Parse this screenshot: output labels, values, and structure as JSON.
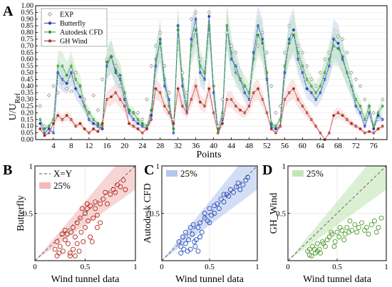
{
  "chart_data": [
    {
      "panel": "A",
      "type": "line",
      "xlabel": "Points",
      "ylabel": "U/URef",
      "ylabel_main": "U/U",
      "ylabel_sub": "Ref",
      "xlim": [
        1,
        78
      ],
      "ylim": [
        0,
        1
      ],
      "xticks": [
        4,
        8,
        12,
        16,
        20,
        24,
        28,
        32,
        36,
        40,
        44,
        48,
        52,
        56,
        60,
        64,
        68,
        72,
        76
      ],
      "yticks": [
        "0.00",
        "0.05",
        "0.10",
        "0.15",
        "0.20",
        "0.25",
        "0.30",
        "0.35",
        "0.40",
        "0.45",
        "0.50",
        "0.55",
        "0.60",
        "0.65",
        "0.70",
        "0.75",
        "0.80",
        "0.85",
        "0.90",
        "0.95",
        "1.00"
      ],
      "legend": [
        "EXP",
        "Butterfly",
        "Autodesk CFD",
        "GH Wind"
      ],
      "colors": {
        "exp": "#888888",
        "butterfly": "#1f3fbf",
        "autodesk": "#2e9a2e",
        "ghwind": "#b02a1a",
        "band_butterfly": "#b8c8ec",
        "band_autodesk": "#b9e3b9",
        "band_ghwind": "#f4c4c4"
      },
      "series": [
        {
          "name": "EXP",
          "marker": "open-diamond",
          "values": [
            0.25,
            0.1,
            0.33,
            0.4,
            0.35,
            0.42,
            0.38,
            0.36,
            0.5,
            0.4,
            0.3,
            0.2,
            0.33,
            0.22,
            0.45,
            0.6,
            0.62,
            0.55,
            0.4,
            0.3,
            0.22,
            0.2,
            0.2,
            0.15,
            0.3,
            0.55,
            0.7,
            0.8,
            0.55,
            0.35,
            0.15,
            0.85,
            0.5,
            0.35,
            0.9,
            0.95,
            0.6,
            0.5,
            0.95,
            0.4,
            0.1,
            0.3,
            0.8,
            0.7,
            0.65,
            0.45,
            0.4,
            0.35,
            0.65,
            0.7,
            0.8,
            0.65,
            0.4,
            0.2,
            0.25,
            0.65,
            0.85,
            0.8,
            0.7,
            0.65,
            0.55,
            0.45,
            0.4,
            0.5,
            0.6,
            0.65,
            0.75,
            0.77,
            0.75,
            0.65,
            0.5,
            0.45,
            0.4,
            0.3,
            0.25,
            0.2,
            0.15,
            0.3
          ]
        },
        {
          "name": "Butterfly",
          "marker": "filled-circle",
          "values": [
            0.12,
            0.05,
            0.08,
            0.05,
            0.5,
            0.45,
            0.42,
            0.5,
            0.38,
            0.32,
            0.25,
            0.15,
            0.12,
            0.1,
            0.08,
            0.55,
            0.62,
            0.5,
            0.45,
            0.3,
            0.2,
            0.15,
            0.12,
            0.1,
            0.08,
            0.18,
            0.55,
            0.75,
            0.4,
            0.3,
            0.05,
            0.85,
            0.4,
            0.2,
            0.75,
            0.9,
            0.5,
            0.45,
            0.92,
            0.35,
            0.05,
            0.15,
            0.85,
            0.6,
            0.55,
            0.45,
            0.35,
            0.3,
            0.65,
            0.85,
            0.75,
            0.45,
            0.1,
            0.08,
            0.1,
            0.5,
            0.75,
            0.82,
            0.6,
            0.5,
            0.38,
            0.35,
            0.3,
            0.35,
            0.45,
            0.55,
            0.75,
            0.72,
            0.6,
            0.5,
            0.4,
            0.25,
            0.2,
            0.1,
            0.2,
            0.08,
            0.18,
            0.15
          ]
        },
        {
          "name": "Autodesk CFD",
          "marker": "filled-circle",
          "values": [
            0.15,
            0.08,
            0.1,
            0.15,
            0.55,
            0.55,
            0.48,
            0.55,
            0.45,
            0.4,
            0.25,
            0.2,
            0.15,
            0.12,
            0.1,
            0.58,
            0.62,
            0.52,
            0.48,
            0.35,
            0.22,
            0.2,
            0.15,
            0.12,
            0.1,
            0.22,
            0.6,
            0.72,
            0.45,
            0.25,
            0.08,
            0.82,
            0.45,
            0.25,
            0.7,
            0.82,
            0.55,
            0.5,
            0.85,
            0.4,
            0.08,
            0.2,
            0.85,
            0.65,
            0.5,
            0.45,
            0.4,
            0.35,
            0.6,
            0.78,
            0.72,
            0.5,
            0.12,
            0.1,
            0.15,
            0.55,
            0.72,
            0.78,
            0.65,
            0.55,
            0.45,
            0.4,
            0.35,
            0.4,
            0.5,
            0.6,
            0.7,
            0.68,
            0.62,
            0.5,
            0.4,
            0.3,
            0.25,
            0.15,
            0.25,
            0.1,
            0.2,
            0.25
          ]
        },
        {
          "name": "GH Wind",
          "marker": "filled-circle",
          "values": [
            0.08,
            0.03,
            0.05,
            0.12,
            0.18,
            0.15,
            0.18,
            0.15,
            0.1,
            0.12,
            0.08,
            0.05,
            0.08,
            0.06,
            0.12,
            0.3,
            0.32,
            0.35,
            0.3,
            0.25,
            0.12,
            0.1,
            0.08,
            0.05,
            0.08,
            0.15,
            0.38,
            0.35,
            0.25,
            0.2,
            0.12,
            0.38,
            0.25,
            0.2,
            0.3,
            0.4,
            0.28,
            0.25,
            0.38,
            0.2,
            0.05,
            0.12,
            0.3,
            0.3,
            0.25,
            0.22,
            0.2,
            0.25,
            0.35,
            0.38,
            0.3,
            0.2,
            0.08,
            0.05,
            0.1,
            0.3,
            0.35,
            0.38,
            0.3,
            0.25,
            0.2,
            0.15,
            0.1,
            0.05,
            0.0,
            0.05,
            0.18,
            0.2,
            0.18,
            0.15,
            0.12,
            0.1,
            0.08,
            0.05,
            0.06,
            0.05,
            0.08,
            0.1
          ]
        }
      ]
    },
    {
      "panel": "B",
      "type": "scatter",
      "xlabel": "Wind tunnel data",
      "ylabel": "Butterfly",
      "xlim": [
        0,
        1
      ],
      "ylim": [
        0,
        1
      ],
      "xticks": [
        "0",
        "0.5",
        "1"
      ],
      "yticks": [
        "0",
        "0.5",
        "1"
      ],
      "legend": [
        "X=Y",
        "25%"
      ],
      "color": "#b02a1a",
      "band_color": "#f4b9b9",
      "points": [
        [
          0.2,
          0.12
        ],
        [
          0.22,
          0.2
        ],
        [
          0.25,
          0.15
        ],
        [
          0.28,
          0.1
        ],
        [
          0.3,
          0.22
        ],
        [
          0.32,
          0.28
        ],
        [
          0.33,
          0.18
        ],
        [
          0.35,
          0.08
        ],
        [
          0.36,
          0.3
        ],
        [
          0.38,
          0.12
        ],
        [
          0.38,
          0.35
        ],
        [
          0.4,
          0.25
        ],
        [
          0.42,
          0.4
        ],
        [
          0.42,
          0.18
        ],
        [
          0.44,
          0.1
        ],
        [
          0.45,
          0.45
        ],
        [
          0.46,
          0.3
        ],
        [
          0.48,
          0.2
        ],
        [
          0.5,
          0.5
        ],
        [
          0.5,
          0.35
        ],
        [
          0.52,
          0.55
        ],
        [
          0.53,
          0.42
        ],
        [
          0.55,
          0.25
        ],
        [
          0.55,
          0.58
        ],
        [
          0.58,
          0.45
        ],
        [
          0.6,
          0.55
        ],
        [
          0.6,
          0.62
        ],
        [
          0.62,
          0.48
        ],
        [
          0.65,
          0.6
        ],
        [
          0.65,
          0.4
        ],
        [
          0.68,
          0.65
        ],
        [
          0.7,
          0.72
        ],
        [
          0.72,
          0.6
        ],
        [
          0.75,
          0.7
        ],
        [
          0.78,
          0.75
        ],
        [
          0.8,
          0.72
        ],
        [
          0.82,
          0.8
        ],
        [
          0.85,
          0.78
        ],
        [
          0.88,
          0.85
        ],
        [
          0.9,
          0.75
        ],
        [
          0.3,
          0.32
        ],
        [
          0.27,
          0.28
        ],
        [
          0.24,
          0.08
        ],
        [
          0.47,
          0.55
        ],
        [
          0.57,
          0.2
        ],
        [
          0.4,
          0.05
        ],
        [
          0.35,
          0.05
        ],
        [
          0.22,
          0.05
        ],
        [
          0.52,
          0.6
        ],
        [
          0.62,
          0.35
        ]
      ]
    },
    {
      "panel": "C",
      "type": "scatter",
      "xlabel": "Wind tunnel data",
      "ylabel": "Autodesk CFD",
      "xlim": [
        0,
        1
      ],
      "ylim": [
        0,
        1
      ],
      "xticks": [
        "0",
        "0.5",
        "1"
      ],
      "yticks": [
        "0",
        "0.5",
        "1"
      ],
      "legend": [
        "25%"
      ],
      "color": "#2a4fbf",
      "band_color": "#b6c6ec",
      "points": [
        [
          0.18,
          0.2
        ],
        [
          0.2,
          0.15
        ],
        [
          0.22,
          0.25
        ],
        [
          0.25,
          0.18
        ],
        [
          0.28,
          0.22
        ],
        [
          0.3,
          0.12
        ],
        [
          0.32,
          0.28
        ],
        [
          0.34,
          0.2
        ],
        [
          0.35,
          0.15
        ],
        [
          0.38,
          0.1
        ],
        [
          0.38,
          0.35
        ],
        [
          0.4,
          0.4
        ],
        [
          0.42,
          0.3
        ],
        [
          0.45,
          0.45
        ],
        [
          0.48,
          0.42
        ],
        [
          0.5,
          0.55
        ],
        [
          0.52,
          0.48
        ],
        [
          0.55,
          0.58
        ],
        [
          0.58,
          0.6
        ],
        [
          0.6,
          0.55
        ],
        [
          0.62,
          0.65
        ],
        [
          0.65,
          0.62
        ],
        [
          0.68,
          0.7
        ],
        [
          0.7,
          0.68
        ],
        [
          0.72,
          0.75
        ],
        [
          0.75,
          0.72
        ],
        [
          0.78,
          0.78
        ],
        [
          0.8,
          0.82
        ],
        [
          0.82,
          0.75
        ],
        [
          0.85,
          0.8
        ],
        [
          0.88,
          0.85
        ],
        [
          0.9,
          0.88
        ],
        [
          0.25,
          0.3
        ],
        [
          0.3,
          0.35
        ],
        [
          0.27,
          0.1
        ],
        [
          0.45,
          0.5
        ],
        [
          0.55,
          0.5
        ],
        [
          0.65,
          0.7
        ],
        [
          0.4,
          0.25
        ],
        [
          0.2,
          0.08
        ],
        [
          0.33,
          0.38
        ],
        [
          0.5,
          0.4
        ],
        [
          0.23,
          0.12
        ],
        [
          0.36,
          0.22
        ]
      ]
    },
    {
      "panel": "D",
      "type": "scatter",
      "xlabel": "Wind tunnel data",
      "ylabel": "GH_Wind",
      "xlim": [
        0,
        1
      ],
      "ylim": [
        0,
        1
      ],
      "xticks": [
        "0",
        "0.5",
        "1"
      ],
      "yticks": [
        "0",
        "0.5",
        "1"
      ],
      "legend": [
        "25%"
      ],
      "color": "#4a9a2a",
      "band_color": "#c3e6b6",
      "points": [
        [
          0.2,
          0.1
        ],
        [
          0.22,
          0.12
        ],
        [
          0.25,
          0.15
        ],
        [
          0.28,
          0.08
        ],
        [
          0.3,
          0.18
        ],
        [
          0.32,
          0.12
        ],
        [
          0.35,
          0.2
        ],
        [
          0.38,
          0.15
        ],
        [
          0.4,
          0.22
        ],
        [
          0.42,
          0.25
        ],
        [
          0.45,
          0.28
        ],
        [
          0.48,
          0.2
        ],
        [
          0.5,
          0.3
        ],
        [
          0.52,
          0.25
        ],
        [
          0.55,
          0.32
        ],
        [
          0.58,
          0.28
        ],
        [
          0.6,
          0.35
        ],
        [
          0.62,
          0.3
        ],
        [
          0.65,
          0.32
        ],
        [
          0.68,
          0.38
        ],
        [
          0.7,
          0.3
        ],
        [
          0.72,
          0.35
        ],
        [
          0.75,
          0.4
        ],
        [
          0.78,
          0.32
        ],
        [
          0.8,
          0.35
        ],
        [
          0.85,
          0.38
        ],
        [
          0.88,
          0.42
        ],
        [
          0.9,
          0.3
        ],
        [
          0.92,
          0.35
        ],
        [
          0.24,
          0.05
        ],
        [
          0.27,
          0.12
        ],
        [
          0.33,
          0.08
        ],
        [
          0.36,
          0.18
        ],
        [
          0.44,
          0.3
        ],
        [
          0.53,
          0.35
        ],
        [
          0.63,
          0.42
        ],
        [
          0.95,
          0.45
        ],
        [
          0.22,
          0.06
        ],
        [
          0.3,
          0.1
        ],
        [
          0.47,
          0.15
        ],
        [
          0.57,
          0.22
        ],
        [
          0.82,
          0.28
        ]
      ]
    }
  ]
}
